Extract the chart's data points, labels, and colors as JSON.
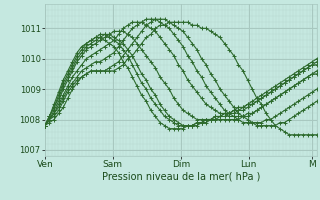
{
  "title": "Pression niveau de la mer( hPa )",
  "bg_color": "#c5e8e0",
  "grid_color_major": "#a8c8c0",
  "grid_color_minor": "#b8d8d0",
  "line_color": "#2d6a2d",
  "ylim": [
    1006.8,
    1011.8
  ],
  "yticks": [
    1007,
    1008,
    1009,
    1010,
    1011
  ],
  "day_labels": [
    "Ven",
    "Sam",
    "Dim",
    "Lun",
    "M"
  ],
  "day_positions": [
    0,
    60,
    120,
    180,
    236
  ],
  "xlim": [
    0,
    240
  ],
  "series": [
    [
      1007.8,
      1007.9,
      1008.0,
      1008.2,
      1008.4,
      1008.7,
      1009.0,
      1009.2,
      1009.4,
      1009.5,
      1009.6,
      1009.6,
      1009.6,
      1009.6,
      1009.6,
      1009.6,
      1009.7,
      1009.8,
      1010.0,
      1010.1,
      1010.3,
      1010.5,
      1010.7,
      1010.8,
      1011.0,
      1011.1,
      1011.1,
      1011.2,
      1011.2,
      1011.2,
      1011.2,
      1011.2,
      1011.1,
      1011.1,
      1011.0,
      1011.0,
      1010.9,
      1010.8,
      1010.7,
      1010.5,
      1010.3,
      1010.1,
      1009.8,
      1009.6,
      1009.3,
      1009.0,
      1008.7,
      1008.5,
      1008.2,
      1008.0,
      1007.8,
      1007.7,
      1007.6,
      1007.5,
      1007.5,
      1007.5,
      1007.5,
      1007.5,
      1007.5,
      1007.5
    ],
    [
      1007.8,
      1008.0,
      1008.1,
      1008.3,
      1008.6,
      1008.9,
      1009.1,
      1009.3,
      1009.4,
      1009.5,
      1009.6,
      1009.6,
      1009.6,
      1009.6,
      1009.7,
      1009.8,
      1009.9,
      1010.1,
      1010.3,
      1010.5,
      1010.7,
      1010.9,
      1011.1,
      1011.2,
      1011.3,
      1011.3,
      1011.3,
      1011.2,
      1011.1,
      1011.0,
      1010.9,
      1010.7,
      1010.5,
      1010.3,
      1010.0,
      1009.8,
      1009.5,
      1009.3,
      1009.0,
      1008.8,
      1008.6,
      1008.4,
      1008.2,
      1008.1,
      1008.0,
      1007.9,
      1007.8,
      1007.8,
      1007.8,
      1007.8,
      1007.8,
      1007.9,
      1007.9,
      1008.0,
      1008.1,
      1008.2,
      1008.3,
      1008.4,
      1008.5,
      1008.6
    ],
    [
      1007.8,
      1008.0,
      1008.2,
      1008.4,
      1008.7,
      1009.0,
      1009.2,
      1009.4,
      1009.6,
      1009.7,
      1009.8,
      1009.9,
      1009.9,
      1010.0,
      1010.1,
      1010.2,
      1010.4,
      1010.6,
      1010.8,
      1011.0,
      1011.1,
      1011.2,
      1011.3,
      1011.3,
      1011.3,
      1011.2,
      1011.1,
      1011.0,
      1010.8,
      1010.6,
      1010.4,
      1010.1,
      1009.9,
      1009.6,
      1009.4,
      1009.1,
      1008.9,
      1008.7,
      1008.5,
      1008.3,
      1008.2,
      1008.1,
      1008.0,
      1007.9,
      1007.9,
      1007.9,
      1007.9,
      1007.9,
      1008.0,
      1008.0,
      1008.1,
      1008.2,
      1008.3,
      1008.4,
      1008.5,
      1008.6,
      1008.7,
      1008.8,
      1008.9,
      1009.0
    ],
    [
      1007.8,
      1008.0,
      1008.2,
      1008.5,
      1008.8,
      1009.1,
      1009.4,
      1009.6,
      1009.8,
      1010.0,
      1010.1,
      1010.2,
      1010.3,
      1010.4,
      1010.5,
      1010.6,
      1010.8,
      1011.0,
      1011.1,
      1011.2,
      1011.2,
      1011.2,
      1011.1,
      1011.0,
      1010.9,
      1010.7,
      1010.5,
      1010.3,
      1010.1,
      1009.8,
      1009.6,
      1009.3,
      1009.1,
      1008.9,
      1008.7,
      1008.5,
      1008.4,
      1008.3,
      1008.2,
      1008.2,
      1008.1,
      1008.1,
      1008.1,
      1008.1,
      1008.2,
      1008.2,
      1008.3,
      1008.4,
      1008.5,
      1008.6,
      1008.7,
      1008.8,
      1008.9,
      1009.0,
      1009.1,
      1009.2,
      1009.3,
      1009.4,
      1009.5,
      1009.5
    ],
    [
      1007.8,
      1008.0,
      1008.3,
      1008.6,
      1009.0,
      1009.3,
      1009.6,
      1009.9,
      1010.1,
      1010.3,
      1010.4,
      1010.5,
      1010.6,
      1010.7,
      1010.8,
      1010.9,
      1010.9,
      1010.9,
      1010.8,
      1010.7,
      1010.5,
      1010.3,
      1010.1,
      1009.9,
      1009.7,
      1009.4,
      1009.2,
      1009.0,
      1008.7,
      1008.5,
      1008.3,
      1008.2,
      1008.1,
      1008.0,
      1008.0,
      1008.0,
      1008.0,
      1008.0,
      1008.0,
      1008.0,
      1008.0,
      1008.0,
      1008.0,
      1008.1,
      1008.1,
      1008.2,
      1008.3,
      1008.4,
      1008.5,
      1008.6,
      1008.7,
      1008.8,
      1008.9,
      1009.0,
      1009.1,
      1009.2,
      1009.3,
      1009.4,
      1009.5,
      1009.6
    ],
    [
      1007.8,
      1008.1,
      1008.4,
      1008.7,
      1009.1,
      1009.4,
      1009.7,
      1010.0,
      1010.2,
      1010.4,
      1010.5,
      1010.6,
      1010.7,
      1010.8,
      1010.8,
      1010.7,
      1010.6,
      1010.5,
      1010.3,
      1010.1,
      1009.8,
      1009.5,
      1009.3,
      1009.0,
      1008.8,
      1008.5,
      1008.3,
      1008.1,
      1008.0,
      1007.9,
      1007.8,
      1007.8,
      1007.8,
      1007.8,
      1007.9,
      1007.9,
      1008.0,
      1008.0,
      1008.1,
      1008.1,
      1008.2,
      1008.2,
      1008.3,
      1008.3,
      1008.4,
      1008.5,
      1008.6,
      1008.7,
      1008.8,
      1008.9,
      1009.0,
      1009.1,
      1009.2,
      1009.3,
      1009.4,
      1009.5,
      1009.6,
      1009.7,
      1009.8,
      1009.9
    ],
    [
      1007.8,
      1008.1,
      1008.4,
      1008.8,
      1009.2,
      1009.5,
      1009.8,
      1010.1,
      1010.3,
      1010.5,
      1010.6,
      1010.7,
      1010.8,
      1010.8,
      1010.7,
      1010.6,
      1010.5,
      1010.3,
      1010.1,
      1009.8,
      1009.5,
      1009.2,
      1009.0,
      1008.7,
      1008.5,
      1008.3,
      1008.1,
      1008.0,
      1007.9,
      1007.8,
      1007.8,
      1007.8,
      1007.8,
      1007.9,
      1007.9,
      1008.0,
      1008.0,
      1008.1,
      1008.1,
      1008.2,
      1008.2,
      1008.3,
      1008.4,
      1008.4,
      1008.5,
      1008.6,
      1008.7,
      1008.8,
      1008.9,
      1009.0,
      1009.1,
      1009.2,
      1009.3,
      1009.4,
      1009.5,
      1009.6,
      1009.7,
      1009.8,
      1009.9,
      1010.0
    ],
    [
      1007.8,
      1008.1,
      1008.5,
      1008.9,
      1009.3,
      1009.6,
      1009.9,
      1010.2,
      1010.4,
      1010.5,
      1010.6,
      1010.7,
      1010.7,
      1010.6,
      1010.5,
      1010.4,
      1010.2,
      1009.9,
      1009.7,
      1009.4,
      1009.1,
      1008.8,
      1008.6,
      1008.3,
      1008.1,
      1007.9,
      1007.8,
      1007.7,
      1007.7,
      1007.7,
      1007.7,
      1007.8,
      1007.8,
      1007.9,
      1007.9,
      1008.0,
      1008.0,
      1008.1,
      1008.1,
      1008.2,
      1008.2,
      1008.3,
      1008.3,
      1008.4,
      1008.5,
      1008.5,
      1008.6,
      1008.7,
      1008.8,
      1008.9,
      1009.0,
      1009.1,
      1009.2,
      1009.3,
      1009.4,
      1009.5,
      1009.6,
      1009.7,
      1009.8,
      1009.8
    ]
  ]
}
